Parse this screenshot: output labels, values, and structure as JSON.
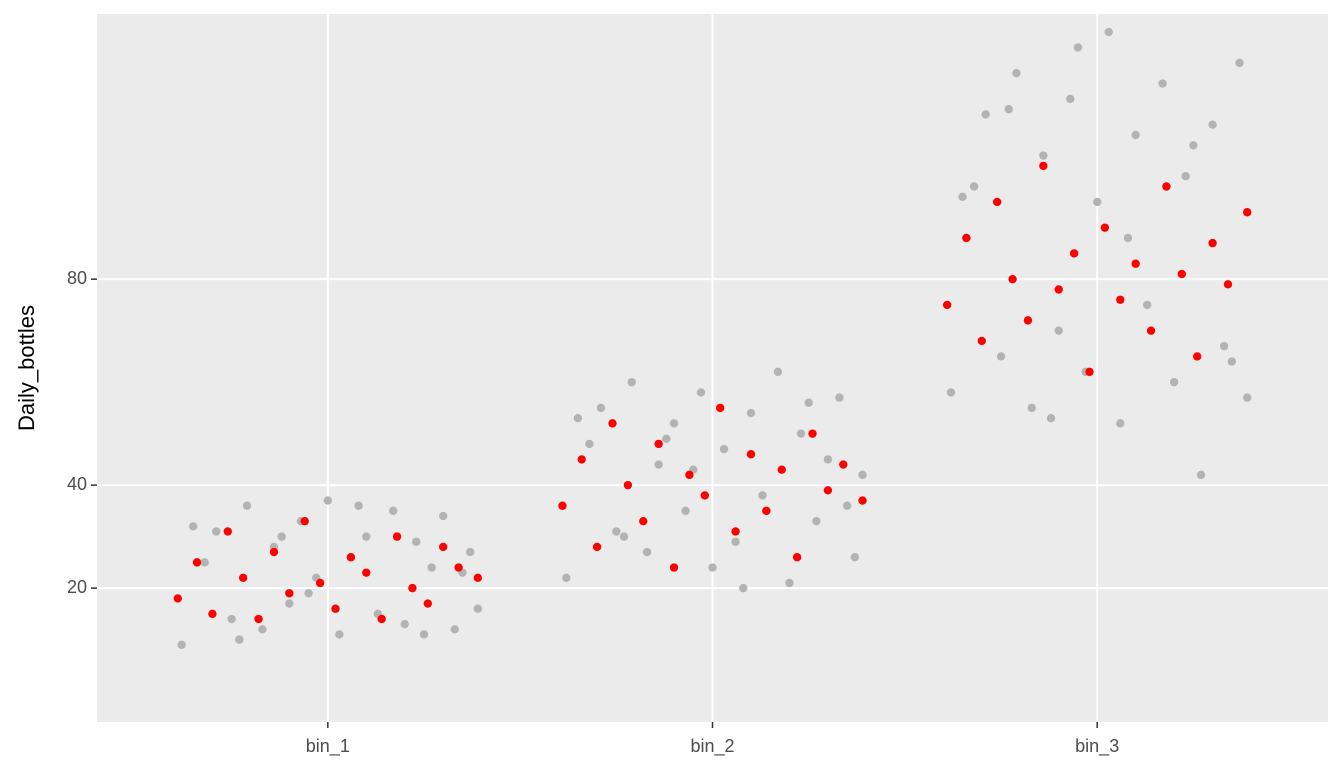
{
  "chart_data": {
    "type": "scatter",
    "ylabel": "Daily_bottles",
    "xlim": [
      0.4,
      3.6
    ],
    "xticks": [
      {
        "value": 1,
        "label": "bin_1"
      },
      {
        "value": 2,
        "label": "bin_2"
      },
      {
        "value": 3,
        "label": "bin_3"
      }
    ],
    "ylim": [
      -6,
      131.5
    ],
    "yticks": [
      20,
      40,
      80
    ],
    "grid": true,
    "series": [
      {
        "color": "#b3b3b3",
        "x": [
          0.62,
          0.68,
          0.71,
          0.75,
          0.79,
          0.83,
          0.86,
          0.9,
          0.93,
          0.97,
          1.0,
          1.03,
          1.06,
          1.1,
          1.13,
          1.17,
          1.2,
          1.23,
          1.27,
          1.3,
          1.33,
          1.37,
          1.39,
          0.65,
          0.77,
          0.88,
          1.08,
          1.25,
          1.35,
          0.95,
          1.62,
          1.68,
          1.71,
          1.75,
          1.79,
          1.83,
          1.86,
          1.9,
          1.93,
          1.97,
          2.0,
          2.03,
          2.06,
          2.1,
          2.13,
          2.17,
          2.2,
          2.23,
          2.27,
          2.3,
          2.33,
          2.37,
          2.39,
          1.65,
          1.77,
          1.88,
          2.08,
          2.25,
          2.35,
          1.95,
          2.62,
          2.68,
          2.71,
          2.75,
          2.79,
          2.83,
          2.86,
          2.9,
          2.93,
          2.97,
          3.0,
          3.03,
          3.06,
          3.1,
          3.13,
          3.17,
          3.2,
          3.23,
          3.27,
          3.3,
          3.33,
          3.37,
          3.39,
          2.65,
          2.77,
          2.88,
          3.08,
          3.25,
          3.35,
          2.95
        ],
        "values": [
          9,
          25,
          31,
          14,
          36,
          12,
          28,
          17,
          33,
          22,
          37,
          11,
          26,
          30,
          15,
          35,
          13,
          29,
          24,
          34,
          12,
          27,
          16,
          32,
          10,
          30,
          36,
          11,
          23,
          19,
          22,
          48,
          55,
          31,
          60,
          27,
          44,
          52,
          35,
          58,
          24,
          47,
          29,
          54,
          38,
          62,
          21,
          50,
          33,
          45,
          57,
          26,
          42,
          53,
          30,
          49,
          20,
          56,
          36,
          43,
          58,
          98,
          112,
          65,
          120,
          55,
          104,
          70,
          115,
          62,
          95,
          128,
          52,
          108,
          75,
          118,
          60,
          100,
          42,
          110,
          67,
          122,
          57,
          96,
          113,
          53,
          88,
          106,
          64,
          125
        ]
      },
      {
        "color": "#ff0000",
        "x": [
          0.61,
          0.66,
          0.7,
          0.74,
          0.78,
          0.82,
          0.86,
          0.9,
          0.94,
          0.98,
          1.02,
          1.06,
          1.1,
          1.14,
          1.18,
          1.22,
          1.26,
          1.3,
          1.34,
          1.39,
          1.61,
          1.66,
          1.7,
          1.74,
          1.78,
          1.82,
          1.86,
          1.9,
          1.94,
          1.98,
          2.02,
          2.06,
          2.1,
          2.14,
          2.18,
          2.22,
          2.26,
          2.3,
          2.34,
          2.39,
          2.61,
          2.66,
          2.7,
          2.74,
          2.78,
          2.82,
          2.86,
          2.9,
          2.94,
          2.98,
          3.02,
          3.06,
          3.1,
          3.14,
          3.18,
          3.22,
          3.26,
          3.3,
          3.34,
          3.39
        ],
        "values": [
          18,
          25,
          15,
          31,
          22,
          14,
          27,
          19,
          33,
          21,
          16,
          26,
          23,
          14,
          30,
          20,
          17,
          28,
          24,
          22,
          36,
          45,
          28,
          52,
          40,
          33,
          48,
          24,
          42,
          38,
          55,
          31,
          46,
          35,
          43,
          26,
          50,
          39,
          44,
          37,
          75,
          88,
          68,
          95,
          80,
          72,
          102,
          78,
          85,
          62,
          90,
          76,
          83,
          70,
          98,
          81,
          65,
          87,
          79,
          93
        ]
      }
    ]
  }
}
